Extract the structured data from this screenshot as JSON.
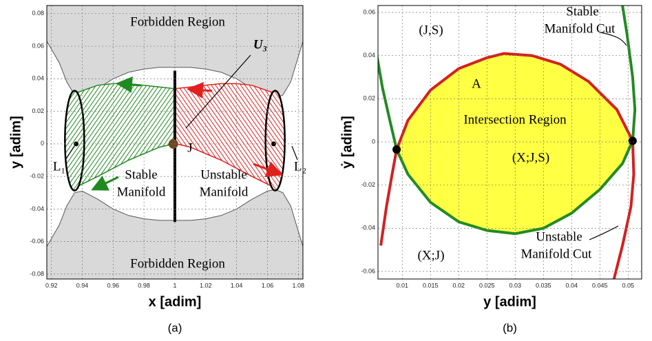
{
  "chart_data": [
    {
      "type": "manifold",
      "xlabel": "x [adim]",
      "ylabel": "y [adim]",
      "caption": "(a)",
      "xlim": [
        0.917,
        1.083
      ],
      "ylim": [
        -0.083,
        0.085
      ],
      "xticks": [
        0.92,
        0.94,
        0.96,
        0.98,
        1,
        1.02,
        1.04,
        1.06,
        1.08
      ],
      "yticks": [
        -0.08,
        -0.06,
        -0.04,
        -0.02,
        0,
        0.02,
        0.04,
        0.06,
        0.08
      ],
      "grid": true,
      "forbidden": {
        "color": "#d9d9d9",
        "x": [
          0.917,
          0.925,
          0.93,
          0.935,
          0.94,
          0.95,
          0.96,
          0.97,
          0.98,
          0.99,
          1.0,
          1.01,
          1.02,
          1.03,
          1.04,
          1.05,
          1.06,
          1.065,
          1.07,
          1.075,
          1.083
        ],
        "upper": [
          0.063,
          0.05,
          0.038,
          0.03,
          0.029,
          0.034,
          0.04,
          0.044,
          0.046,
          0.047,
          0.047,
          0.047,
          0.046,
          0.044,
          0.04,
          0.034,
          0.029,
          0.028,
          0.03,
          0.038,
          0.063
        ],
        "lower": [
          -0.063,
          -0.05,
          -0.038,
          -0.03,
          -0.029,
          -0.034,
          -0.04,
          -0.044,
          -0.046,
          -0.047,
          -0.047,
          -0.047,
          -0.046,
          -0.044,
          -0.04,
          -0.034,
          -0.029,
          -0.028,
          -0.03,
          -0.038,
          -0.063
        ]
      },
      "tubes": [
        {
          "color": "#1f8a1f",
          "x": [
            0.935,
            0.95,
            0.96,
            0.97,
            0.98,
            0.99,
            0.999
          ],
          "upper": [
            0.031,
            0.036,
            0.037,
            0.037,
            0.036,
            0.035,
            0.034
          ],
          "lower": [
            -0.027,
            -0.02,
            -0.015,
            -0.01,
            -0.006,
            -0.002,
            0.0
          ]
        },
        {
          "color": "#e0201e",
          "x": [
            1.001,
            1.01,
            1.02,
            1.03,
            1.04,
            1.05,
            1.065
          ],
          "upper": [
            0.034,
            0.035,
            0.036,
            0.037,
            0.037,
            0.036,
            0.031
          ],
          "lower": [
            0.0,
            -0.002,
            -0.006,
            -0.01,
            -0.015,
            -0.02,
            -0.027
          ]
        }
      ],
      "section": {
        "x": 1,
        "y": [
          -0.048,
          0.045
        ]
      },
      "points": {
        "x": [
          0.936,
          0.999,
          1.064
        ],
        "y": [
          0,
          0,
          0
        ]
      },
      "annotations": {
        "forbidden_top": "Forbidden Region",
        "forbidden_bottom": "Forbidden Region",
        "section": "U₃",
        "point": "J",
        "l1": "L₁",
        "l2": "L₂",
        "stable": [
          "Stable",
          "Manifold"
        ],
        "unstable": [
          "Unstable",
          "Manifold"
        ]
      }
    },
    {
      "type": "line",
      "xlabel": "y [adim]",
      "ylabel": "ẏ [adim]",
      "caption": "(b)",
      "xlim": [
        0.0057,
        0.0524
      ],
      "ylim": [
        -0.0635,
        0.0632
      ],
      "xticks": [
        0.01,
        0.015,
        0.02,
        0.025,
        0.03,
        0.035,
        0.04,
        0.045,
        0.05
      ],
      "yticks": [
        -0.06,
        -0.04,
        -0.02,
        0,
        0.02,
        0.04,
        0.06
      ],
      "grid": true,
      "region_color": "#ffff44",
      "series": [
        {
          "color": "#228b22",
          "x": [
            0.0055,
            0.0065,
            0.0078,
            0.009,
            0.011,
            0.015,
            0.02,
            0.025,
            0.03,
            0.035,
            0.04,
            0.045,
            0.049,
            0.0508,
            0.0512,
            0.0508,
            0.0498,
            0.049
          ],
          "values": [
            0.04,
            0.025,
            0.01,
            -0.0035,
            -0.015,
            -0.028,
            -0.037,
            -0.041,
            -0.0425,
            -0.04,
            -0.033,
            -0.022,
            -0.01,
            0.0005,
            0.015,
            0.03,
            0.05,
            0.0632
          ]
        },
        {
          "color": "#d42020",
          "x": [
            0.0062,
            0.0072,
            0.0082,
            0.009,
            0.011,
            0.015,
            0.02,
            0.025,
            0.028,
            0.033,
            0.038,
            0.043,
            0.048,
            0.0508,
            0.051,
            0.0505,
            0.049,
            0.0475
          ],
          "values": [
            -0.048,
            -0.03,
            -0.015,
            -0.0035,
            0.01,
            0.024,
            0.034,
            0.039,
            0.041,
            0.04,
            0.036,
            0.028,
            0.015,
            0.0005,
            -0.015,
            -0.03,
            -0.048,
            -0.0635
          ]
        }
      ],
      "points": {
        "x": [
          0.009,
          0.0508
        ],
        "y": [
          -0.0035,
          0.0005
        ]
      },
      "annotations": {
        "js": "(J,S)",
        "a": "A",
        "region": "Intersection Region",
        "xjs": "(X;J,S)",
        "xj": "(X;J)",
        "stable": [
          "Stable",
          "Manifold Cut"
        ],
        "unstable": [
          "Unstable",
          "Manifold Cut"
        ]
      }
    }
  ]
}
